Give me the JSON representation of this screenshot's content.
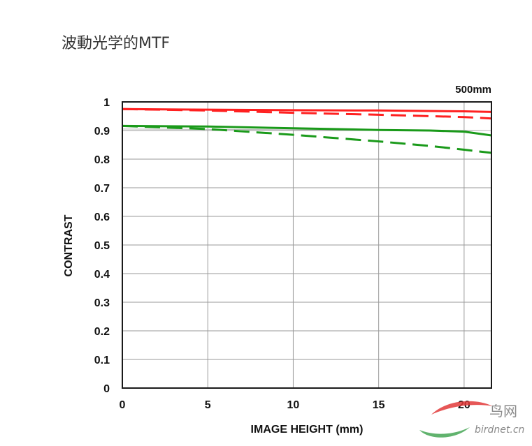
{
  "page": {
    "title": "波動光学的MTF"
  },
  "chart_data": {
    "type": "line",
    "title": "",
    "annotation": "500mm",
    "xlabel": "IMAGE HEIGHT (mm)",
    "ylabel": "CONTRAST",
    "xlim": [
      0,
      21.6
    ],
    "ylim": [
      0,
      1
    ],
    "x_ticks": [
      0,
      5,
      10,
      15,
      20
    ],
    "x_tick_labels": [
      "0",
      "5",
      "10",
      "15",
      "20"
    ],
    "y_ticks": [
      1,
      0.9,
      0.8,
      0.7,
      0.6,
      0.5,
      0.4,
      0.3,
      0.2,
      0.1,
      0
    ],
    "y_tick_labels": [
      "1",
      "0.9",
      "0.8",
      "0.7",
      "0.6",
      "0.5",
      "0.4",
      "0.3",
      "0.2",
      "0.1",
      "0"
    ],
    "grid": true,
    "legend": "none",
    "series": [
      {
        "color": "#ff2020",
        "dash": "solid",
        "x": [
          0,
          5,
          10,
          15,
          20,
          21.6
        ],
        "y": [
          0.975,
          0.973,
          0.971,
          0.97,
          0.967,
          0.965
        ]
      },
      {
        "color": "#ff2020",
        "dash": "dashed",
        "x": [
          0,
          5,
          10,
          15,
          20,
          21.6
        ],
        "y": [
          0.975,
          0.97,
          0.962,
          0.955,
          0.947,
          0.942
        ]
      },
      {
        "color": "#1a9a1a",
        "dash": "solid",
        "x": [
          0,
          5,
          10,
          15,
          18,
          20,
          21.6
        ],
        "y": [
          0.916,
          0.914,
          0.908,
          0.902,
          0.9,
          0.896,
          0.883
        ]
      },
      {
        "color": "#1a9a1a",
        "dash": "dashed",
        "x": [
          0,
          5,
          10,
          15,
          18,
          20,
          21.6
        ],
        "y": [
          0.916,
          0.905,
          0.885,
          0.862,
          0.846,
          0.833,
          0.822
        ]
      },
      {
        "color": "#bbbbbb",
        "dash": "solid",
        "x": [
          0,
          5,
          10,
          15,
          20,
          21.6
        ],
        "y": [
          0.905,
          0.904,
          0.903,
          0.902,
          0.901,
          0.9
        ]
      }
    ]
  },
  "watermark": {
    "name": "鸟网",
    "site": "birdnet.cn"
  }
}
